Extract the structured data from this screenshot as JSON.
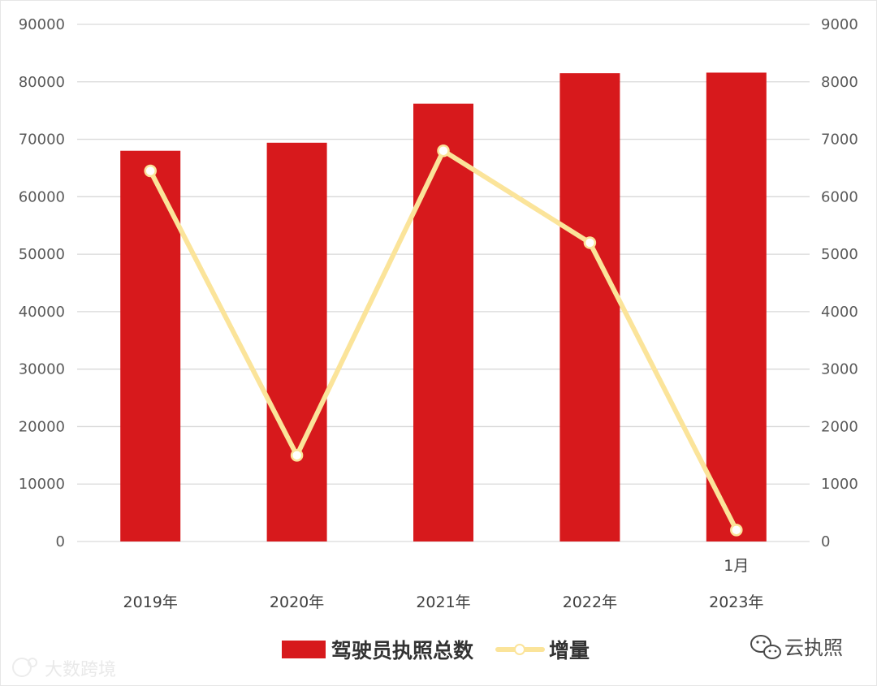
{
  "chart_data": {
    "type": "bar",
    "categories": [
      "2019年",
      "2020年",
      "2021年",
      "2022年",
      "2023年"
    ],
    "category_sublabels": [
      "",
      "",
      "",
      "",
      "1月"
    ],
    "series": [
      {
        "name": "驾驶员执照总数",
        "type": "bar",
        "axis": "left",
        "color": "#d7191c",
        "values": [
          68000,
          69400,
          76200,
          81500,
          81600
        ]
      },
      {
        "name": "增量",
        "type": "line",
        "axis": "right",
        "color": "#fbe49a",
        "values": [
          6450,
          1500,
          6800,
          5200,
          200
        ]
      }
    ],
    "y_left": {
      "ylim": [
        0,
        90000
      ],
      "ticks": [
        "0",
        "10000",
        "20000",
        "30000",
        "40000",
        "50000",
        "60000",
        "70000",
        "80000",
        "90000"
      ]
    },
    "y_right": {
      "ylim": [
        0,
        9000
      ],
      "ticks": [
        "0",
        "1000",
        "2000",
        "3000",
        "4000",
        "5000",
        "6000",
        "7000",
        "8000",
        "9000"
      ]
    },
    "grid": true,
    "legend": "bottom-center"
  },
  "watermarks": {
    "left": "大数跨境",
    "right": "云执照"
  }
}
